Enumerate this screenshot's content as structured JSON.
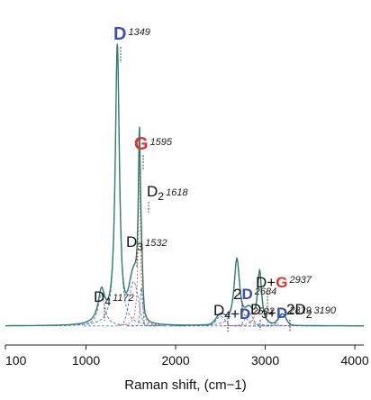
{
  "chart_data": {
    "type": "line",
    "xlabel": "Raman shift, (cm−1)",
    "xlim": [
      100,
      4100
    ],
    "x_ticks": [
      {
        "value": 100,
        "label": "100"
      },
      {
        "value": 1000,
        "label": "1000"
      },
      {
        "value": 2000,
        "label": "2000"
      },
      {
        "value": 3000,
        "label": "3000"
      },
      {
        "value": 4000,
        "label": "4000"
      }
    ],
    "baseline": 0.06,
    "peaks": [
      {
        "center": 1172,
        "height": 0.1,
        "width": 90,
        "kind": "lorentz",
        "color": "#3b5fc0",
        "dash": "3,2"
      },
      {
        "center": 1349,
        "height": 0.88,
        "width": 55,
        "kind": "lorentz",
        "color": "#3b5fc0",
        "dash": "3,2"
      },
      {
        "center": 1532,
        "height": 0.14,
        "width": 70,
        "kind": "gauss",
        "color": "#3b5fc0",
        "dash": "3,2"
      },
      {
        "center": 1595,
        "height": 0.52,
        "width": 30,
        "kind": "lorentz",
        "color": "#d04020",
        "dash": "2,2"
      },
      {
        "center": 1618,
        "height": 0.12,
        "width": 20,
        "kind": "gauss",
        "color": "#3b5fc0",
        "dash": "3,2"
      },
      {
        "center": 2502,
        "height": 0.03,
        "width": 70,
        "kind": "gauss",
        "color": "#3b5fc0",
        "dash": "3,2"
      },
      {
        "center": 2684,
        "height": 0.21,
        "width": 75,
        "kind": "lorentz",
        "color": "#3b5fc0",
        "dash": "3,2"
      },
      {
        "center": 2819,
        "height": 0.04,
        "width": 60,
        "kind": "gauss",
        "color": "#3b5fc0",
        "dash": "3,2"
      },
      {
        "center": 2937,
        "height": 0.17,
        "width": 55,
        "kind": "lorentz",
        "color": "#d04020",
        "dash": "2,2"
      },
      {
        "center": 3190,
        "height": 0.035,
        "width": 60,
        "kind": "gauss",
        "color": "#3b5fc0",
        "dash": "3,2"
      }
    ],
    "annotations": [
      {
        "parts": [
          {
            "text": "D",
            "color": "blue"
          },
          {
            "text": "1349",
            "style": "num"
          }
        ]
      },
      {
        "parts": [
          {
            "text": "G",
            "color": "red"
          },
          {
            "text": "1595",
            "style": "num"
          }
        ]
      },
      {
        "parts": [
          {
            "text": "D",
            "color": "black"
          },
          {
            "text": "2",
            "style": "sub"
          },
          {
            "text": "1618",
            "style": "num"
          }
        ]
      },
      {
        "parts": [
          {
            "text": "D",
            "color": "black"
          },
          {
            "text": "3",
            "style": "sub"
          },
          {
            "text": "1532",
            "style": "num"
          }
        ]
      },
      {
        "parts": [
          {
            "text": "D",
            "color": "black"
          },
          {
            "text": "4",
            "style": "sub"
          },
          {
            "text": "1172",
            "style": "num"
          }
        ]
      },
      {
        "parts": [
          {
            "text": "D",
            "color": "black"
          },
          {
            "text": "4",
            "style": "sub"
          },
          {
            "text": "+",
            "color": "black"
          },
          {
            "text": "D",
            "color": "blue"
          },
          {
            "text": "2502",
            "style": "num"
          }
        ]
      },
      {
        "parts": [
          {
            "text": "2",
            "color": "black"
          },
          {
            "text": "D",
            "color": "blue"
          },
          {
            "text": "2684",
            "style": "num"
          }
        ]
      },
      {
        "parts": [
          {
            "text": "D",
            "color": "black"
          },
          {
            "text": "3",
            "style": "sub"
          },
          {
            "text": "+",
            "color": "black"
          },
          {
            "text": "D",
            "color": "blue"
          },
          {
            "text": "2819",
            "style": "num"
          }
        ]
      },
      {
        "parts": [
          {
            "text": "D",
            "color": "black"
          },
          {
            "text": "+",
            "color": "black"
          },
          {
            "text": "G",
            "color": "red"
          },
          {
            "text": "2937",
            "style": "num"
          }
        ]
      },
      {
        "parts": [
          {
            "text": "2D",
            "color": "black"
          },
          {
            "text": "2",
            "style": "sub"
          },
          {
            "text": "3190",
            "style": "num"
          }
        ]
      }
    ]
  },
  "colors": {
    "blue": "#3b4fb5",
    "red": "#d9342b",
    "black": "#111111",
    "envelope": "#2e7d6e",
    "fit": "#444444"
  }
}
